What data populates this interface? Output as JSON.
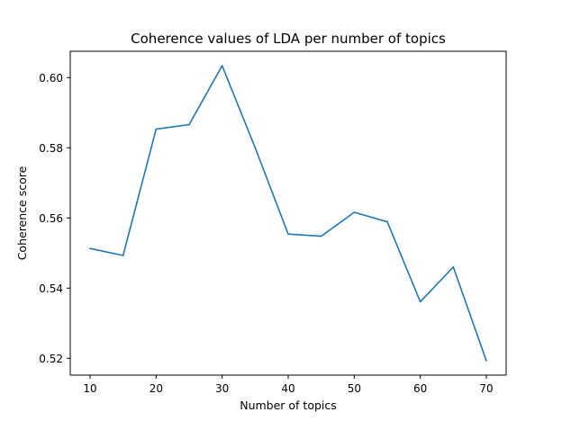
{
  "chart_data": {
    "type": "line",
    "title": "Coherence values of LDA per number of topics",
    "xlabel": "Number of topics",
    "ylabel": "Coherence score",
    "x": [
      10,
      15,
      20,
      25,
      30,
      35,
      40,
      45,
      50,
      55,
      60,
      65,
      70
    ],
    "series": [
      {
        "values": [
          0.5513,
          0.5493,
          0.5853,
          0.5866,
          0.6034,
          0.58,
          0.5554,
          0.5548,
          0.5616,
          0.5589,
          0.5361,
          0.546,
          0.5193
        ]
      }
    ],
    "xlim": [
      7,
      73
    ],
    "ylim": [
      0.5152,
      0.6075
    ],
    "xticks": [
      10,
      20,
      30,
      40,
      50,
      60,
      70
    ],
    "yticks": [
      0.52,
      0.54,
      0.56,
      0.58,
      0.6
    ],
    "xtick_labels": [
      "10",
      "20",
      "30",
      "40",
      "50",
      "60",
      "70"
    ],
    "ytick_labels": [
      "0.52",
      "0.54",
      "0.56",
      "0.58",
      "0.60"
    ],
    "line_color": "#1f77b4",
    "grid": false,
    "legend": "none"
  }
}
